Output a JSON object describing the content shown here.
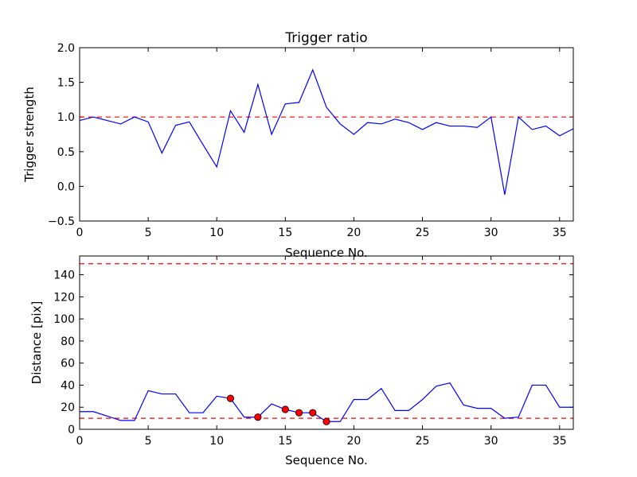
{
  "chart_data": [
    {
      "type": "line",
      "title": "Trigger ratio",
      "xlabel": "Sequence No.",
      "ylabel": "Trigger strength",
      "xlim": [
        0,
        36
      ],
      "ylim": [
        -0.5,
        2.0
      ],
      "xticks": [
        0,
        5,
        10,
        15,
        20,
        25,
        30,
        35
      ],
      "yticks": [
        -0.5,
        0.0,
        0.5,
        1.0,
        1.5,
        2.0
      ],
      "ytick_labels": [
        "−0.5",
        "0.0",
        "0.5",
        "1.0",
        "1.5",
        "2.0"
      ],
      "grid": false,
      "series": [
        {
          "name": "trigger strength",
          "color": "#0000ff",
          "x": [
            0,
            1,
            2,
            3,
            4,
            5,
            6,
            7,
            8,
            9,
            10,
            11,
            12,
            13,
            14,
            15,
            16,
            17,
            18,
            19,
            20,
            21,
            22,
            23,
            24,
            25,
            26,
            27,
            28,
            29,
            30,
            31,
            32,
            33,
            34,
            35,
            36
          ],
          "y": [
            0.95,
            1.0,
            0.95,
            0.9,
            1.0,
            0.93,
            0.48,
            0.88,
            0.93,
            0.6,
            0.28,
            1.09,
            0.78,
            1.47,
            0.75,
            1.19,
            1.21,
            1.68,
            1.14,
            0.9,
            0.75,
            0.92,
            0.9,
            0.97,
            0.92,
            0.82,
            0.92,
            0.87,
            0.87,
            0.85,
            1.0,
            -0.12,
            1.0,
            0.82,
            0.87,
            0.73,
            0.83
          ]
        }
      ],
      "reference_lines": [
        {
          "orientation": "horizontal",
          "value": 1.0,
          "style": "dashed",
          "color": "#ff0000"
        }
      ]
    },
    {
      "type": "line",
      "title": "",
      "xlabel": "Sequence No.",
      "ylabel": "Distance [pix]",
      "xlim": [
        0,
        36
      ],
      "ylim": [
        0,
        157
      ],
      "xticks": [
        0,
        5,
        10,
        15,
        20,
        25,
        30,
        35
      ],
      "yticks": [
        0,
        20,
        40,
        60,
        80,
        100,
        120,
        140
      ],
      "ytick_labels": [
        "0",
        "20",
        "40",
        "60",
        "80",
        "100",
        "120",
        "140"
      ],
      "grid": false,
      "series": [
        {
          "name": "distance",
          "color": "#0000ff",
          "x": [
            0,
            1,
            2,
            3,
            4,
            5,
            6,
            7,
            8,
            9,
            10,
            11,
            12,
            13,
            14,
            15,
            16,
            17,
            18,
            19,
            20,
            21,
            22,
            23,
            24,
            25,
            26,
            27,
            28,
            29,
            30,
            31,
            32,
            33,
            34,
            35,
            36
          ],
          "y": [
            16,
            16,
            12,
            8,
            8,
            35,
            32,
            32,
            15,
            15,
            30,
            28,
            11,
            11,
            23,
            18,
            15,
            15,
            7,
            7,
            27,
            27,
            37,
            17,
            17,
            27,
            39,
            42,
            22,
            19,
            19,
            10,
            11,
            40,
            40,
            20,
            20
          ]
        }
      ],
      "markers": {
        "name": "flagged points",
        "color": "#ff0000",
        "x": [
          11,
          13,
          15,
          16,
          17,
          18
        ],
        "y": [
          28,
          11,
          18,
          15,
          15,
          7
        ]
      },
      "reference_lines": [
        {
          "orientation": "horizontal",
          "value": 150,
          "style": "dashed",
          "color": "#ff0000"
        },
        {
          "orientation": "horizontal",
          "value": 10,
          "style": "dashed",
          "color": "#ff0000"
        }
      ]
    }
  ]
}
